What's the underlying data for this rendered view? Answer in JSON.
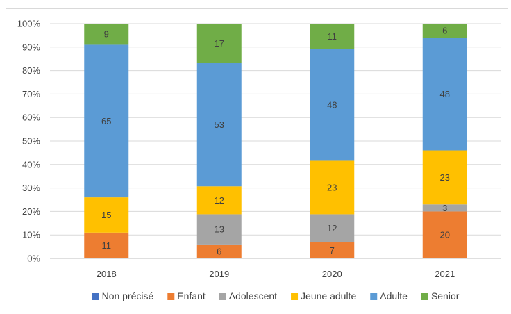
{
  "chart_data": {
    "type": "bar",
    "stacked": "percent",
    "title": "",
    "xlabel": "",
    "ylabel": "",
    "categories": [
      "2018",
      "2019",
      "2020",
      "2021"
    ],
    "ylim": [
      0,
      100
    ],
    "y_tick_labels": [
      "0%",
      "10%",
      "20%",
      "30%",
      "40%",
      "50%",
      "60%",
      "70%",
      "80%",
      "90%",
      "100%"
    ],
    "grid": true,
    "legend_position": "bottom",
    "series": [
      {
        "name": "Non précisé",
        "color": "#4472C4",
        "values": [
          0,
          0,
          0,
          0
        ],
        "labels": [
          "",
          "",
          "",
          ""
        ]
      },
      {
        "name": "Enfant",
        "color": "#ED7D31",
        "values": [
          11,
          6,
          7,
          20
        ],
        "labels": [
          "11",
          "6",
          "7",
          "20"
        ]
      },
      {
        "name": "Adolescent",
        "color": "#A5A5A5",
        "values": [
          0,
          13,
          12,
          3
        ],
        "labels": [
          "",
          "13",
          "12",
          "3"
        ]
      },
      {
        "name": "Jeune adulte",
        "color": "#FFC000",
        "values": [
          15,
          12,
          23,
          23
        ],
        "labels": [
          "15",
          "12",
          "23",
          "23"
        ]
      },
      {
        "name": "Adulte",
        "color": "#5B9BD5",
        "values": [
          65,
          53,
          48,
          48
        ],
        "labels": [
          "65",
          "53",
          "48",
          "48"
        ]
      },
      {
        "name": "Senior",
        "color": "#70AD47",
        "values": [
          9,
          17,
          11,
          6
        ],
        "labels": [
          "9",
          "17",
          "11",
          "6"
        ]
      }
    ]
  }
}
